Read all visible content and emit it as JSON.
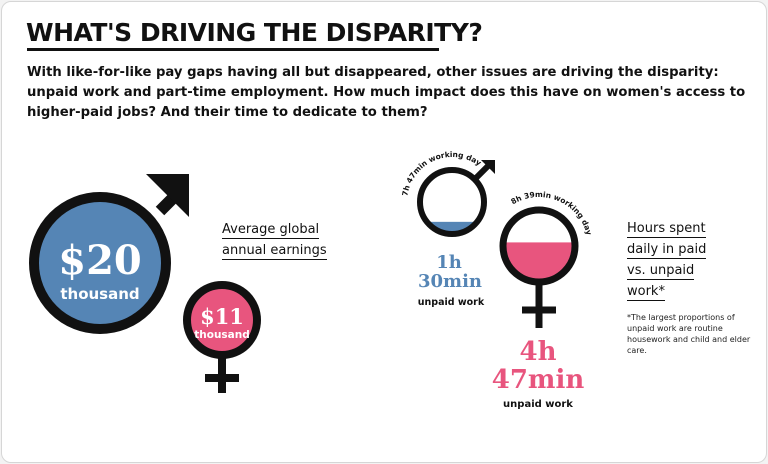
{
  "heading": "WHAT'S DRIVING THE DISPARITY?",
  "intro": "With like-for-like pay gaps having all but disappeared, other issues are driving the disparity: unpaid work and part-time employment. How much impact does this have on women's access to higher-paid jobs? And their time to dedicate to them?",
  "earnings": {
    "label_lines": [
      "Average global",
      "annual earnings"
    ],
    "male": {
      "amount": "$20",
      "unit": "thousand",
      "color": "#5585b5"
    },
    "female": {
      "amount": "$11",
      "unit": "thousand",
      "color": "#e8557e"
    }
  },
  "hours": {
    "label_lines": [
      "Hours spent",
      "daily in paid",
      "vs. unpaid",
      "work*"
    ],
    "male": {
      "working_day": "7h 47min working day",
      "unpaid_value": "1h",
      "unpaid_value_2": "30min",
      "unpaid_caption": "unpaid work",
      "fill_fraction": 0.19,
      "color": "#5585b5"
    },
    "female": {
      "working_day": "8h 39min working day",
      "unpaid_value": "4h",
      "unpaid_value_2": "47min",
      "unpaid_caption": "unpaid work",
      "fill_fraction": 0.55,
      "color": "#e8557e"
    },
    "footnote": "*The largest proportions of unpaid work are routine housework and child and elder care."
  },
  "colors": {
    "ink": "#111111",
    "male": "#5585b5",
    "female": "#e8557e"
  }
}
